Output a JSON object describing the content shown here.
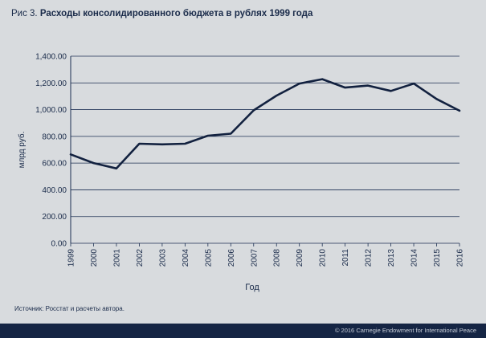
{
  "figure": {
    "label": "Рис 3.",
    "title": "Расходы консолидированного бюджета в рублях 1999 года"
  },
  "source": "Источник: Росстат и расчеты автора.",
  "footer": "© 2016 Carnegie Endowment for International Peace",
  "colors": {
    "line": "#12213f",
    "grid": "#1c2f52",
    "text": "#1a2b4a"
  },
  "chart_data": {
    "type": "line",
    "xlabel": "Год",
    "ylabel": "млрд руб.",
    "ylim": [
      0,
      1400
    ],
    "yticks": [
      "0.00",
      "200.00",
      "400.00",
      "600.00",
      "800.00",
      "1,000.00",
      "1,200.00",
      "1,400.00"
    ],
    "x": [
      "1999",
      "2000",
      "2001",
      "2002",
      "2003",
      "2004",
      "2005",
      "2006",
      "2007",
      "2008",
      "2009",
      "2010",
      "2011",
      "2012",
      "2013",
      "2014",
      "2015",
      "2016"
    ],
    "series": [
      {
        "values": [
          665,
          600,
          560,
          745,
          740,
          745,
          805,
          820,
          995,
          1105,
          1195,
          1228,
          1165,
          1180,
          1140,
          1195,
          1080,
          992
        ]
      }
    ],
    "grid": true
  }
}
